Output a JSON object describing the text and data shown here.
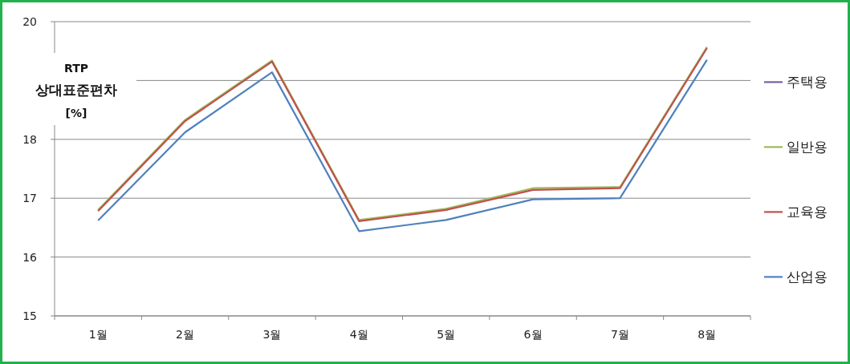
{
  "chart_data": {
    "type": "line",
    "ylabel": "RTP 상대표준편차 [%]",
    "categories": [
      "1월",
      "2월",
      "3월",
      "4월",
      "5월",
      "6월",
      "7월",
      "8월"
    ],
    "ylim": [
      15,
      20
    ],
    "yticks": [
      15,
      16,
      17,
      18,
      {
        "value": 19,
        "label": null
      },
      20
    ],
    "grid": "y",
    "legend": "right",
    "series": [
      {
        "name": "주택용",
        "color": "#7b5ea7",
        "values": [
          null,
          null,
          null,
          null,
          null,
          null,
          null,
          null
        ]
      },
      {
        "name": "일반용",
        "color": "#9bbb59",
        "values": [
          16.8,
          18.33,
          19.34,
          16.63,
          16.82,
          17.17,
          17.19,
          19.57
        ]
      },
      {
        "name": "교육용",
        "color": "#c0504d",
        "values": [
          16.78,
          18.31,
          19.32,
          16.61,
          16.8,
          17.14,
          17.17,
          19.55
        ]
      },
      {
        "name": "산업용",
        "color": "#4f81bd",
        "values": [
          16.62,
          18.12,
          19.14,
          16.44,
          16.63,
          16.98,
          17.0,
          19.35
        ]
      }
    ]
  }
}
